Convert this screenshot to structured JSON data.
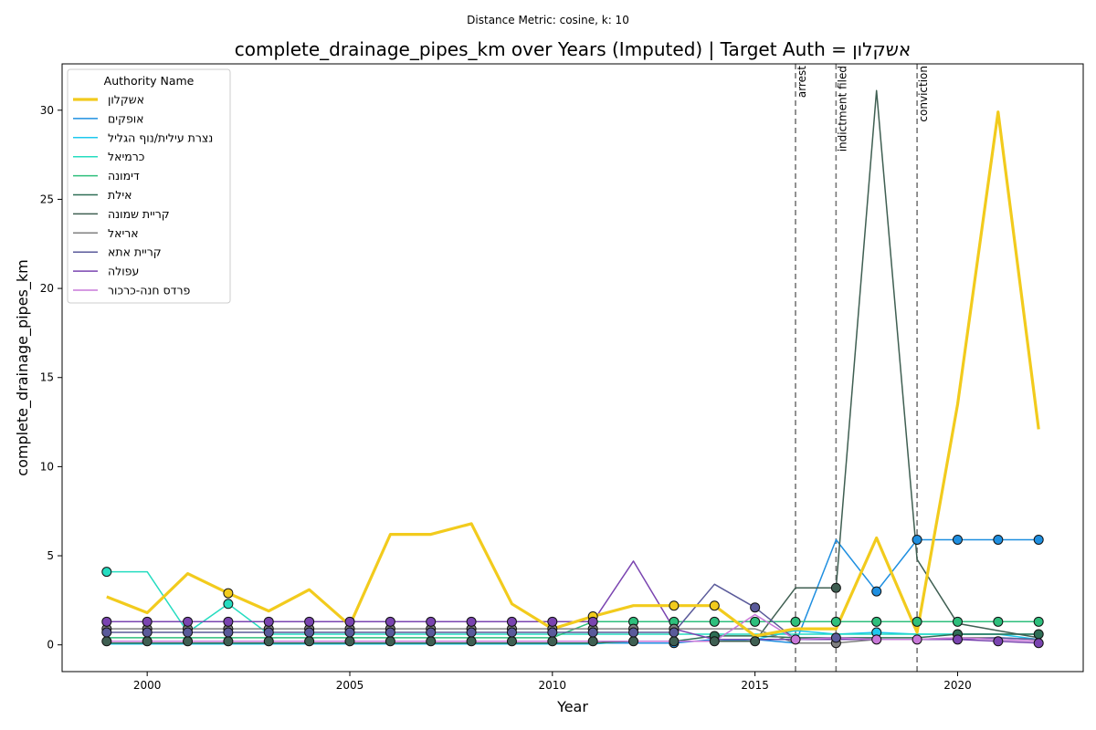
{
  "chart_data": {
    "type": "line",
    "subtitle": "Distance Metric: cosine, k: 10",
    "title": "complete_drainage_pipes_km over Years (Imputed) | Target Auth = אשקלון",
    "xlabel": "Year",
    "ylabel": "complete_drainage_pipes_km",
    "xlim": [
      1997.9,
      2023.1
    ],
    "ylim": [
      -1.5,
      32.6
    ],
    "xticks": [
      2000,
      2005,
      2010,
      2015,
      2020
    ],
    "yticks": [
      0,
      5,
      10,
      15,
      20,
      25,
      30
    ],
    "grid": false,
    "legend": {
      "title": "Authority Name",
      "placement": "top-left"
    },
    "x": [
      1999,
      2000,
      2001,
      2002,
      2003,
      2004,
      2005,
      2006,
      2007,
      2008,
      2009,
      2010,
      2011,
      2012,
      2013,
      2014,
      2015,
      2016,
      2017,
      2018,
      2019,
      2020,
      2021,
      2022
    ],
    "events": [
      {
        "x": 2016,
        "label": "arrest"
      },
      {
        "x": 2017,
        "label": "indictment filed"
      },
      {
        "x": 2019,
        "label": "conviction"
      }
    ],
    "series": [
      {
        "name": "אשקלון",
        "color": "#f2cb1d",
        "target": true,
        "values": [
          2.7,
          1.8,
          4.0,
          2.9,
          1.9,
          3.1,
          1.1,
          6.2,
          6.2,
          6.8,
          2.3,
          0.9,
          1.6,
          2.2,
          2.2,
          2.2,
          0.5,
          0.9,
          0.9,
          6.0,
          0.7,
          13.5,
          29.9,
          12.1
        ],
        "markers": [
          null,
          null,
          null,
          2.9,
          null,
          null,
          null,
          null,
          null,
          null,
          null,
          null,
          1.6,
          null,
          2.2,
          2.2,
          null,
          null,
          null,
          null,
          null,
          null,
          null,
          null
        ]
      },
      {
        "name": "אופקים",
        "color": "#1f8fe0",
        "values": [
          0.1,
          0.1,
          0.1,
          0.1,
          0.1,
          0.1,
          0.1,
          0.1,
          0.1,
          0.1,
          0.1,
          0.1,
          0.1,
          0.1,
          0.1,
          0.3,
          0.3,
          0.1,
          5.9,
          3.0,
          5.9,
          5.9,
          5.9,
          5.9
        ],
        "markers": [
          null,
          null,
          null,
          null,
          null,
          null,
          null,
          null,
          null,
          null,
          null,
          null,
          null,
          null,
          0.1,
          null,
          null,
          null,
          null,
          3.0,
          5.9,
          5.9,
          5.9,
          5.9
        ]
      },
      {
        "name": "נצרת עילית/נוף הגליל",
        "color": "#1ec8ee",
        "values": [
          0.05,
          0.05,
          0.05,
          0.05,
          0.05,
          0.05,
          0.05,
          0.05,
          0.05,
          0.05,
          0.05,
          0.05,
          0.05,
          0.2,
          0.2,
          0.2,
          0.3,
          0.8,
          0.6,
          0.7,
          0.6,
          0.6,
          0.6,
          0.3
        ],
        "markers": [
          null,
          null,
          null,
          null,
          null,
          null,
          null,
          null,
          null,
          null,
          null,
          null,
          null,
          null,
          null,
          null,
          null,
          null,
          null,
          0.7,
          null,
          null,
          null,
          null
        ]
      },
      {
        "name": "כרמיאל",
        "color": "#25dcc0",
        "values": [
          4.1,
          4.1,
          0.7,
          2.3,
          0.6,
          0.6,
          0.6,
          0.6,
          0.6,
          0.6,
          0.6,
          0.6,
          0.6,
          0.6,
          0.6,
          0.6,
          0.6,
          0.6,
          0.6,
          0.6,
          0.6,
          0.6,
          0.6,
          0.6
        ],
        "markers": [
          4.1,
          null,
          null,
          2.3,
          null,
          null,
          null,
          null,
          null,
          null,
          null,
          null,
          null,
          null,
          null,
          null,
          null,
          null,
          null,
          null,
          null,
          null,
          null,
          null
        ]
      },
      {
        "name": "דימונה",
        "color": "#2ebf7c",
        "values": [
          0.4,
          0.4,
          0.4,
          0.4,
          0.4,
          0.4,
          0.4,
          0.4,
          0.4,
          0.4,
          0.4,
          0.4,
          1.3,
          1.3,
          1.3,
          1.3,
          1.3,
          1.3,
          1.3,
          1.3,
          1.3,
          1.3,
          1.3,
          1.3
        ],
        "markers": [
          null,
          null,
          null,
          null,
          null,
          null,
          null,
          null,
          null,
          null,
          null,
          null,
          null,
          1.3,
          1.3,
          1.3,
          1.3,
          1.3,
          1.3,
          1.3,
          1.3,
          1.3,
          1.3,
          1.3
        ]
      },
      {
        "name": "אילת",
        "color": "#2e6e55",
        "values": [
          0.1,
          0.1,
          0.1,
          0.1,
          0.1,
          0.1,
          0.1,
          0.1,
          0.1,
          0.1,
          0.1,
          0.1,
          0.1,
          0.2,
          0.2,
          0.5,
          0.5,
          0.4,
          0.4,
          0.4,
          0.4,
          0.6,
          0.6,
          0.6
        ],
        "markers": [
          null,
          null,
          null,
          null,
          null,
          null,
          null,
          null,
          null,
          null,
          null,
          null,
          null,
          null,
          null,
          0.5,
          null,
          null,
          null,
          null,
          null,
          0.6,
          null,
          0.6
        ]
      },
      {
        "name": "קריית שמונה",
        "color": "#3f5f52",
        "values": [
          0.2,
          0.2,
          0.2,
          0.2,
          0.2,
          0.2,
          0.2,
          0.2,
          0.2,
          0.2,
          0.2,
          0.2,
          0.2,
          0.2,
          0.2,
          0.2,
          0.2,
          3.2,
          3.2,
          31.1,
          4.8,
          1.2,
          0.8,
          0.4
        ],
        "markers": [
          0.2,
          0.2,
          0.2,
          0.2,
          0.2,
          0.2,
          0.2,
          0.2,
          0.2,
          0.2,
          0.2,
          0.2,
          0.2,
          0.2,
          0.2,
          0.2,
          0.2,
          null,
          3.2,
          null,
          null,
          null,
          null,
          null
        ]
      },
      {
        "name": "אריאל",
        "color": "#808080",
        "values": [
          0.9,
          0.9,
          0.9,
          0.9,
          0.9,
          0.9,
          0.9,
          0.9,
          0.9,
          0.9,
          0.9,
          0.9,
          0.9,
          0.9,
          0.9,
          0.9,
          0.9,
          0.1,
          0.1,
          0.3,
          0.3,
          0.4,
          0.4,
          0.3
        ],
        "markers": [
          0.9,
          0.9,
          0.9,
          0.9,
          0.9,
          0.9,
          0.9,
          0.9,
          0.9,
          0.9,
          0.9,
          0.9,
          0.9,
          0.9,
          0.9,
          null,
          null,
          null,
          0.1,
          null,
          null,
          null,
          null,
          null
        ]
      },
      {
        "name": "קריית אתא",
        "color": "#5a5a9a",
        "values": [
          0.7,
          0.7,
          0.7,
          0.7,
          0.7,
          0.7,
          0.7,
          0.7,
          0.7,
          0.7,
          0.7,
          0.7,
          0.7,
          0.7,
          0.7,
          3.4,
          2.1,
          0.3,
          0.4,
          0.3,
          0.3,
          0.3,
          0.4,
          0.3
        ],
        "markers": [
          0.7,
          0.7,
          0.7,
          0.7,
          0.7,
          0.7,
          0.7,
          0.7,
          0.7,
          0.7,
          0.7,
          0.7,
          0.7,
          0.7,
          0.7,
          null,
          2.1,
          null,
          0.4,
          null,
          null,
          null,
          null,
          null
        ]
      },
      {
        "name": "עפולה",
        "color": "#7a44b0",
        "values": [
          1.3,
          1.3,
          1.3,
          1.3,
          1.3,
          1.3,
          1.3,
          1.3,
          1.3,
          1.3,
          1.3,
          1.3,
          1.3,
          4.7,
          0.9,
          0.3,
          0.3,
          0.3,
          0.3,
          0.3,
          0.3,
          0.3,
          0.2,
          0.1
        ],
        "markers": [
          1.3,
          1.3,
          1.3,
          1.3,
          1.3,
          1.3,
          1.3,
          1.3,
          1.3,
          1.3,
          1.3,
          1.3,
          1.3,
          null,
          null,
          null,
          null,
          null,
          null,
          null,
          null,
          0.3,
          0.2,
          0.1
        ]
      },
      {
        "name": "פרדס חנה-כרכור",
        "color": "#c878d8",
        "values": [
          0.2,
          0.2,
          0.2,
          0.2,
          0.2,
          0.2,
          0.2,
          0.2,
          0.2,
          0.2,
          0.2,
          0.2,
          0.2,
          0.2,
          0.2,
          0.2,
          1.7,
          0.3,
          0.4,
          0.3,
          0.3,
          0.4,
          0.3,
          0.2
        ],
        "markers": [
          null,
          null,
          null,
          null,
          null,
          null,
          null,
          null,
          null,
          null,
          null,
          null,
          null,
          null,
          null,
          null,
          null,
          0.3,
          null,
          0.3,
          0.3,
          null,
          null,
          null
        ]
      }
    ]
  }
}
